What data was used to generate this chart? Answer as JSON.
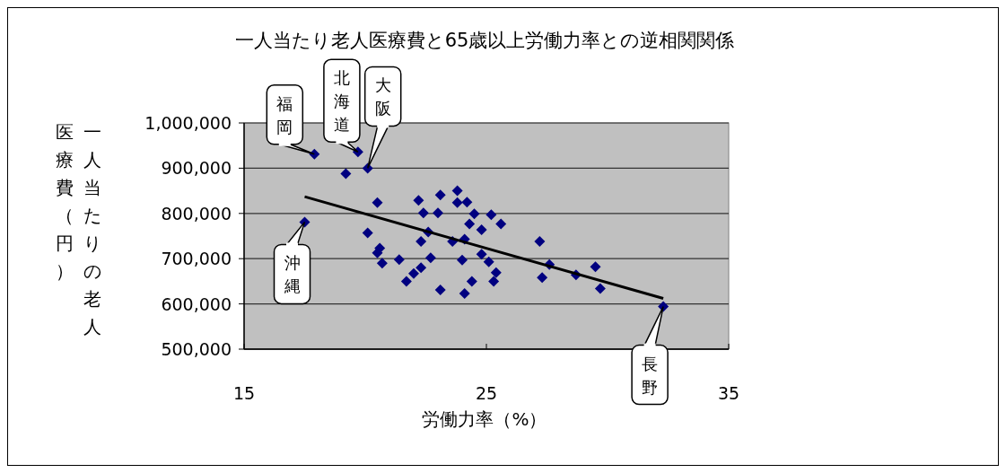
{
  "chart_data": {
    "type": "scatter",
    "title": "一人当たり老人医療費と65歳以上労働力率との逆相関関係",
    "xlabel": "労働力率（%）",
    "ylabel": "一人当たりの老人医療費（円）",
    "xlim": [
      15,
      35
    ],
    "xticks": [
      15,
      25,
      35
    ],
    "ylim": [
      500000,
      1000000
    ],
    "yticks": [
      {
        "value": 500000,
        "label": "500,000"
      },
      {
        "value": 600000,
        "label": "600,000"
      },
      {
        "value": 700000,
        "label": "700,000"
      },
      {
        "value": 800000,
        "label": "800,000"
      },
      {
        "value": 900000,
        "label": "900,000"
      },
      {
        "value": 1000000,
        "label": "1,000,000"
      }
    ],
    "grid": "y",
    "legend": false,
    "marker": "diamond",
    "series": [
      {
        "type": "scatter",
        "color": "#000080",
        "x": [
          17.9,
          19.7,
          19.2,
          20.1,
          17.5,
          20.5,
          22.2,
          23.1,
          23.8,
          23.8,
          24.2,
          22.4,
          23.0,
          24.5,
          24.3,
          20.1,
          22.6,
          22.3,
          23.6,
          24.1,
          20.6,
          20.5,
          20.7,
          21.4,
          22.7,
          24.0,
          22.3,
          22.0,
          21.7,
          23.1,
          24.1,
          24.4,
          25.2,
          25.6,
          24.8,
          24.8,
          25.1,
          25.4,
          25.3,
          27.2,
          27.6,
          27.3,
          28.7,
          29.5,
          29.7,
          32.3
        ],
        "values": [
          931000,
          936000,
          888000,
          900000,
          781000,
          824000,
          829000,
          841000,
          850000,
          824000,
          825000,
          801000,
          801000,
          799000,
          777000,
          757000,
          759000,
          738000,
          738000,
          743000,
          723000,
          713000,
          690000,
          698000,
          702000,
          697000,
          680000,
          667000,
          650000,
          631000,
          623000,
          650000,
          797000,
          777000,
          764000,
          710000,
          693000,
          669000,
          650000,
          738000,
          687000,
          658000,
          664000,
          682000,
          634000,
          594000
        ]
      },
      {
        "type": "line",
        "marker": "none",
        "color": "#000000",
        "x": [
          17.5,
          32.3
        ],
        "values": [
          837000,
          612000
        ]
      }
    ],
    "annotations": [
      {
        "text": "福岡",
        "x": 17.9,
        "y": 931000
      },
      {
        "text": "北海道",
        "x": 19.7,
        "y": 936000
      },
      {
        "text": "大阪",
        "x": 20.1,
        "y": 900000
      },
      {
        "text": "沖縄",
        "x": 17.5,
        "y": 781000
      },
      {
        "text": "長野",
        "x": 32.3,
        "y": 594000
      }
    ]
  }
}
